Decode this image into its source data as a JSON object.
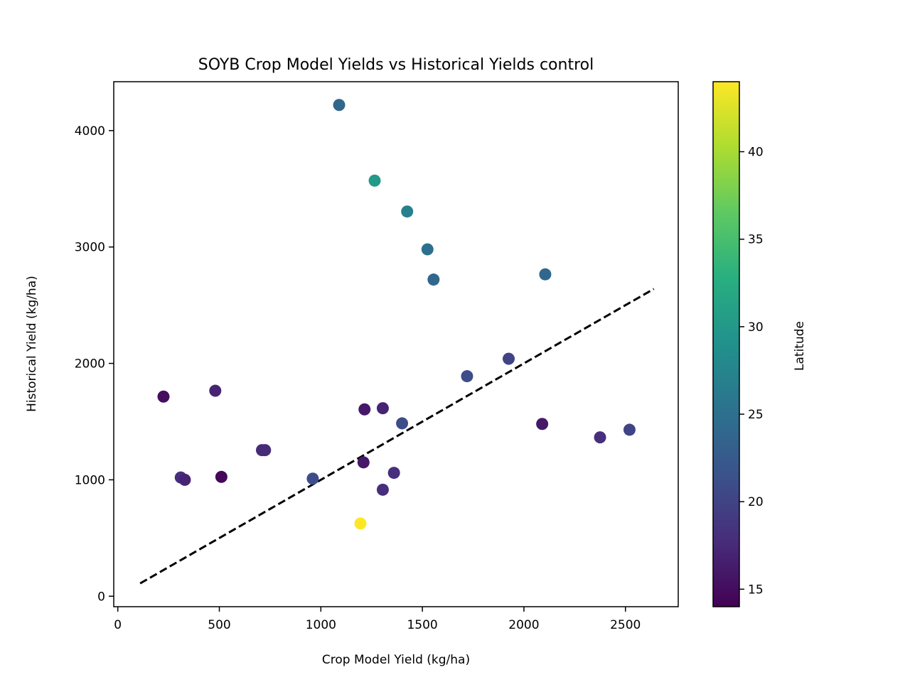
{
  "chart_data": {
    "type": "scatter",
    "title": "SOYB Crop Model Yields vs Historical Yields control",
    "xlabel": "Crop Model Yield (kg/ha)",
    "ylabel": "Historical Yield (kg/ha)",
    "xlim": [
      -20,
      2760
    ],
    "ylim": [
      -90,
      4420
    ],
    "xticks": [
      0,
      500,
      1000,
      1500,
      2000,
      2500
    ],
    "yticks": [
      0,
      1000,
      2000,
      3000,
      4000
    ],
    "grid": false,
    "reference_line": {
      "style": "dashed",
      "color": "#000000",
      "x": [
        110,
        2640
      ],
      "y": [
        110,
        2640
      ]
    },
    "colorbar": {
      "label": "Latitude",
      "min": 14,
      "max": 44,
      "ticks": [
        15,
        20,
        25,
        30,
        35,
        40
      ],
      "colormap": "viridis"
    },
    "points": [
      {
        "x": 1090,
        "y": 4220,
        "lat": 24
      },
      {
        "x": 1265,
        "y": 3570,
        "lat": 30
      },
      {
        "x": 1425,
        "y": 3305,
        "lat": 27
      },
      {
        "x": 1525,
        "y": 2980,
        "lat": 25
      },
      {
        "x": 1555,
        "y": 2720,
        "lat": 24
      },
      {
        "x": 2105,
        "y": 2765,
        "lat": 24
      },
      {
        "x": 1925,
        "y": 2040,
        "lat": 20
      },
      {
        "x": 1720,
        "y": 1890,
        "lat": 21
      },
      {
        "x": 225,
        "y": 1715,
        "lat": 15
      },
      {
        "x": 480,
        "y": 1765,
        "lat": 17
      },
      {
        "x": 1215,
        "y": 1605,
        "lat": 16
      },
      {
        "x": 1305,
        "y": 1615,
        "lat": 17
      },
      {
        "x": 1400,
        "y": 1485,
        "lat": 21
      },
      {
        "x": 2090,
        "y": 1480,
        "lat": 16
      },
      {
        "x": 2375,
        "y": 1365,
        "lat": 18
      },
      {
        "x": 2520,
        "y": 1430,
        "lat": 20
      },
      {
        "x": 710,
        "y": 1255,
        "lat": 17.5
      },
      {
        "x": 725,
        "y": 1255,
        "lat": 17.5
      },
      {
        "x": 1210,
        "y": 1150,
        "lat": 16
      },
      {
        "x": 1360,
        "y": 1060,
        "lat": 18
      },
      {
        "x": 310,
        "y": 1020,
        "lat": 18
      },
      {
        "x": 330,
        "y": 1000,
        "lat": 17
      },
      {
        "x": 510,
        "y": 1025,
        "lat": 14.5
      },
      {
        "x": 960,
        "y": 1010,
        "lat": 21
      },
      {
        "x": 1305,
        "y": 915,
        "lat": 18
      },
      {
        "x": 1195,
        "y": 625,
        "lat": 44
      }
    ]
  }
}
